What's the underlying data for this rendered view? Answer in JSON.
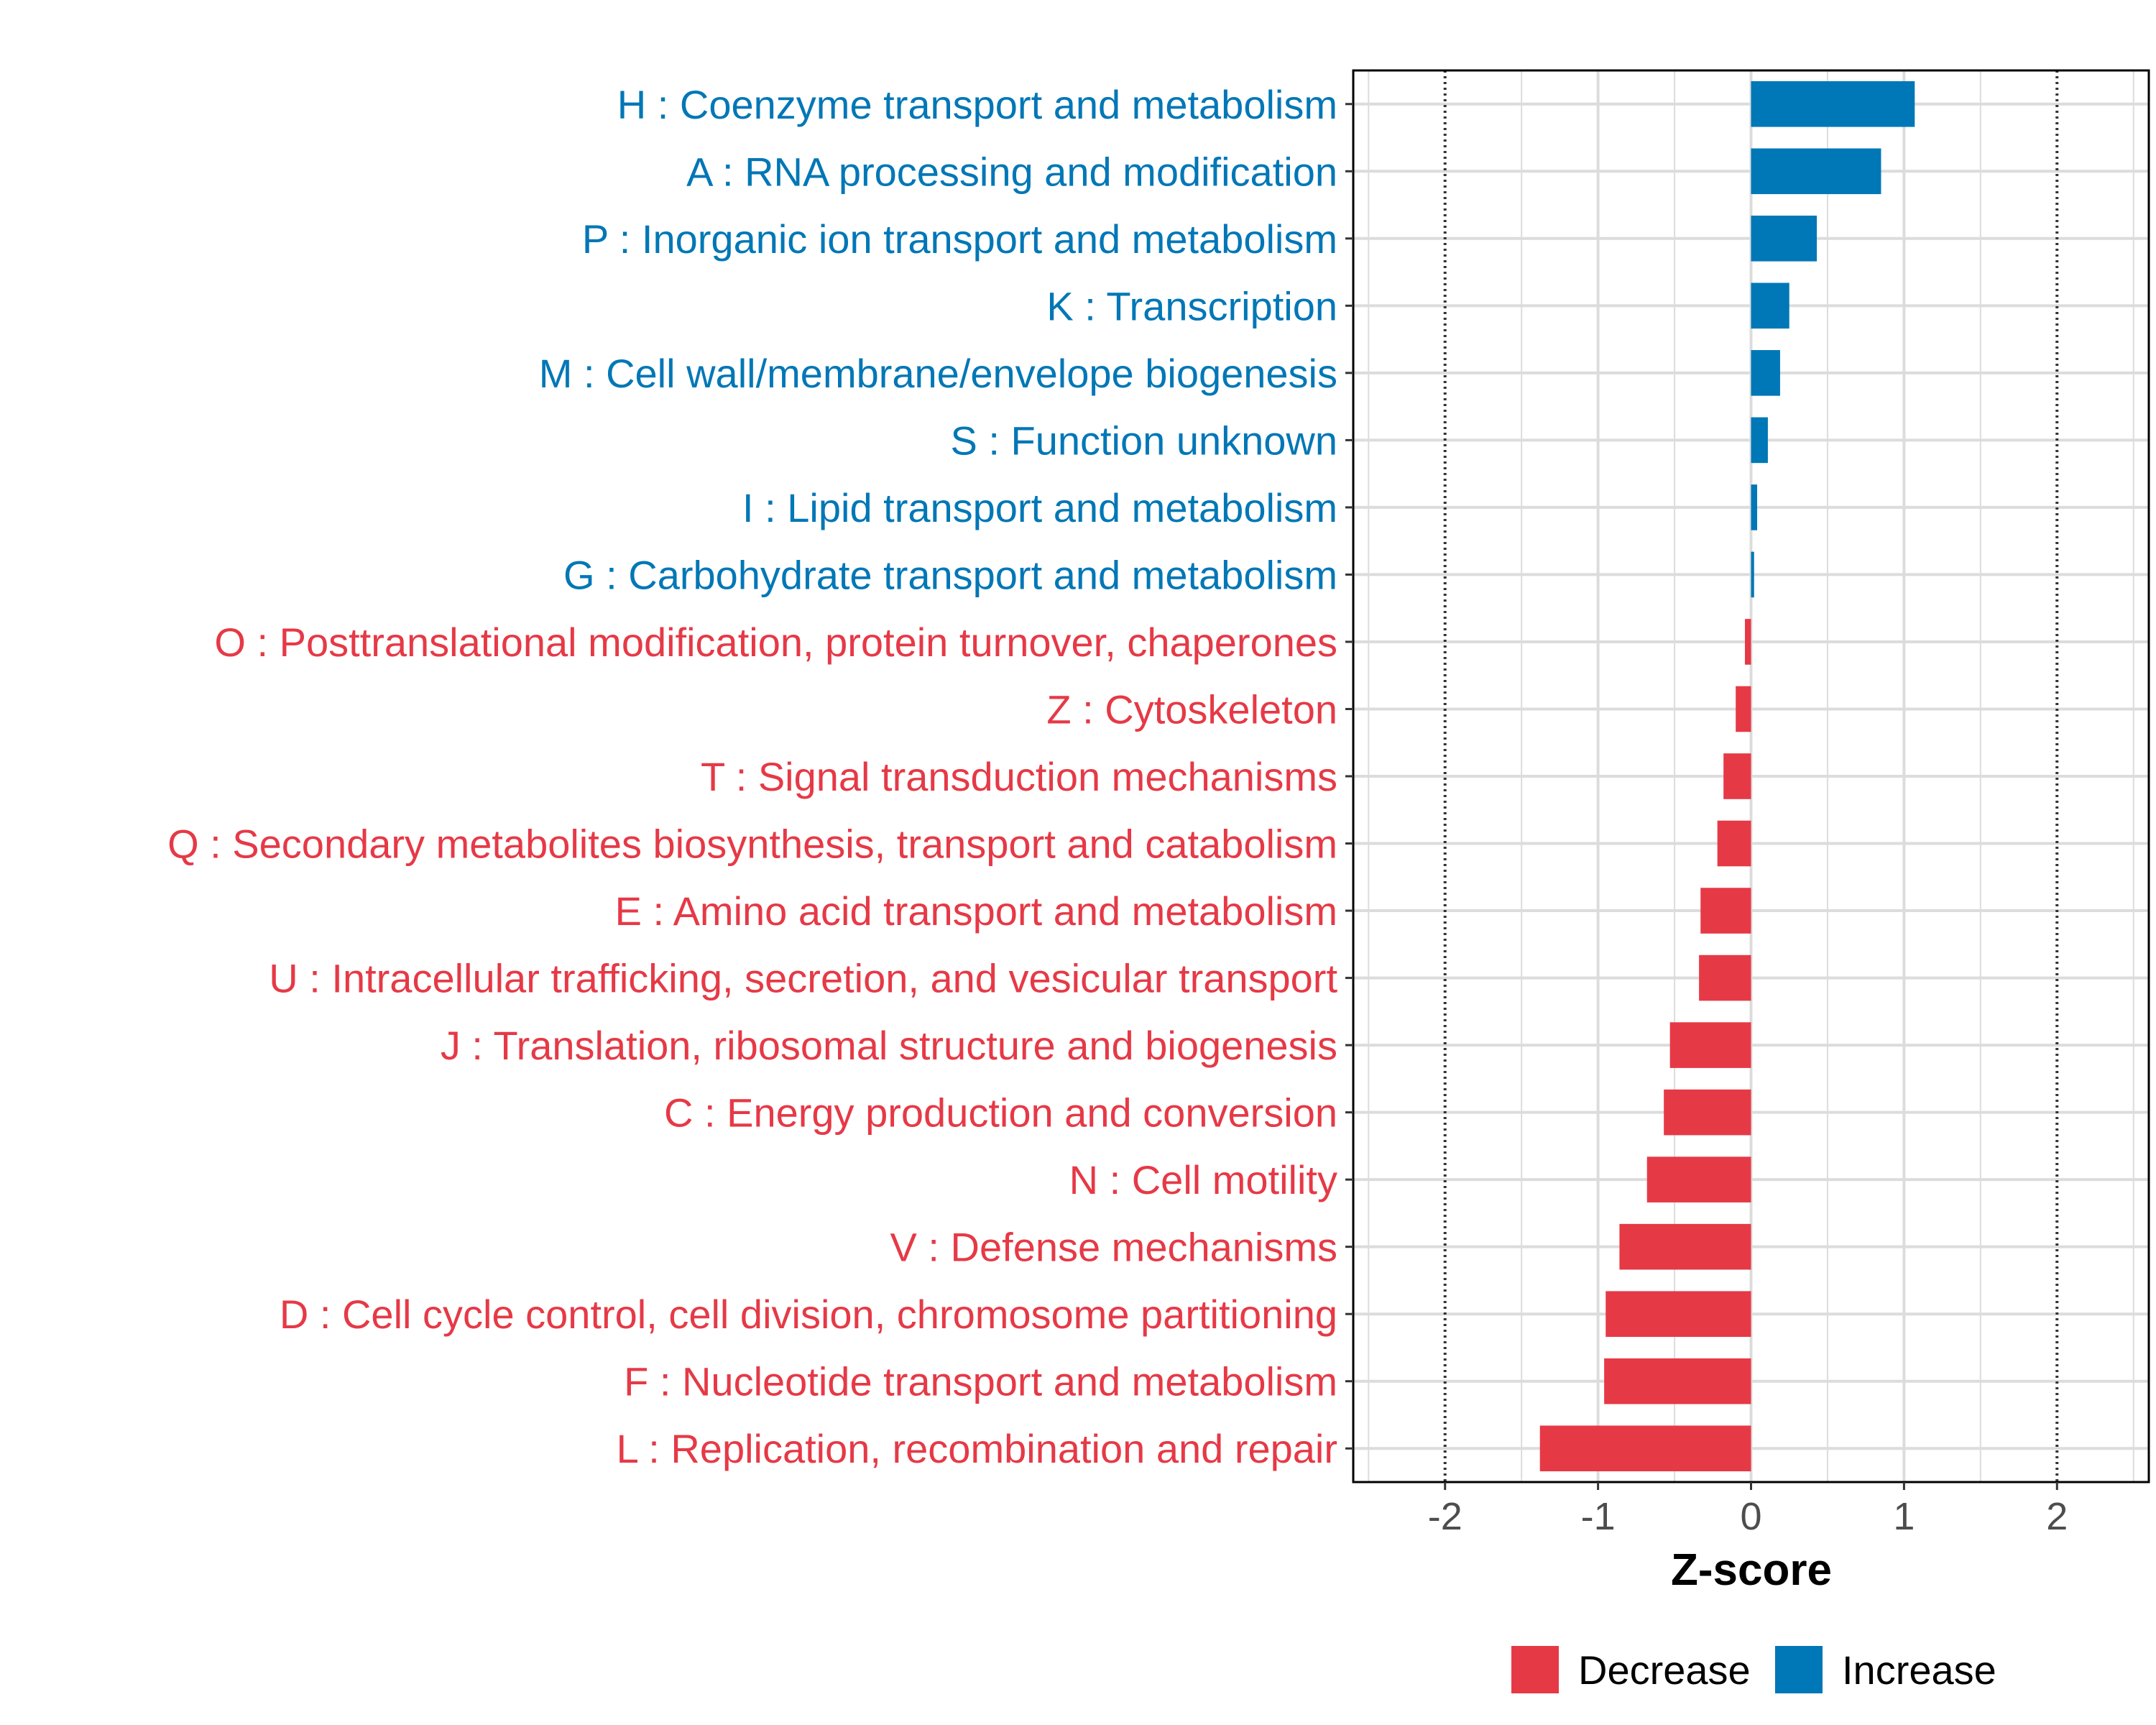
{
  "chart_data": {
    "type": "bar",
    "orientation": "horizontal",
    "xlabel": "Z-score",
    "xlim": [
      -2.6,
      2.6
    ],
    "xticks": [
      -2,
      -1,
      0,
      1,
      2
    ],
    "xtick_labels": [
      "-2",
      "-1",
      "0",
      "1",
      "2"
    ],
    "reference_lines": [
      -2,
      2
    ],
    "grid": true,
    "legend_position": "bottom-right",
    "colors": {
      "Decrease": "#E63946",
      "Increase": "#0077B6"
    },
    "legend": [
      {
        "label": "Decrease",
        "color": "#E63946"
      },
      {
        "label": "Increase",
        "color": "#0077B6"
      }
    ],
    "categories": [
      "H : Coenzyme transport and metabolism",
      "A : RNA processing and modification",
      "P : Inorganic ion transport and metabolism",
      "K : Transcription",
      "M : Cell wall/membrane/envelope biogenesis",
      "S : Function unknown",
      "I : Lipid transport and metabolism",
      "G : Carbohydrate transport and metabolism",
      "O : Posttranslational modification, protein turnover, chaperones",
      "Z : Cytoskeleton",
      "T : Signal transduction mechanisms",
      "Q : Secondary metabolites biosynthesis, transport and catabolism",
      "E : Amino acid transport and metabolism",
      "U : Intracellular trafficking, secretion, and vesicular transport",
      "J : Translation, ribosomal structure and biogenesis",
      "C : Energy production and conversion",
      "N : Cell motility",
      "V : Defense mechanisms",
      "D : Cell cycle control, cell division, chromosome partitioning",
      "F : Nucleotide transport and metabolism",
      "L : Replication, recombination and repair"
    ],
    "values": [
      1.07,
      0.85,
      0.43,
      0.25,
      0.19,
      0.11,
      0.04,
      0.02,
      -0.04,
      -0.1,
      -0.18,
      -0.22,
      -0.33,
      -0.34,
      -0.53,
      -0.57,
      -0.68,
      -0.86,
      -0.95,
      -0.96,
      -1.38
    ]
  }
}
